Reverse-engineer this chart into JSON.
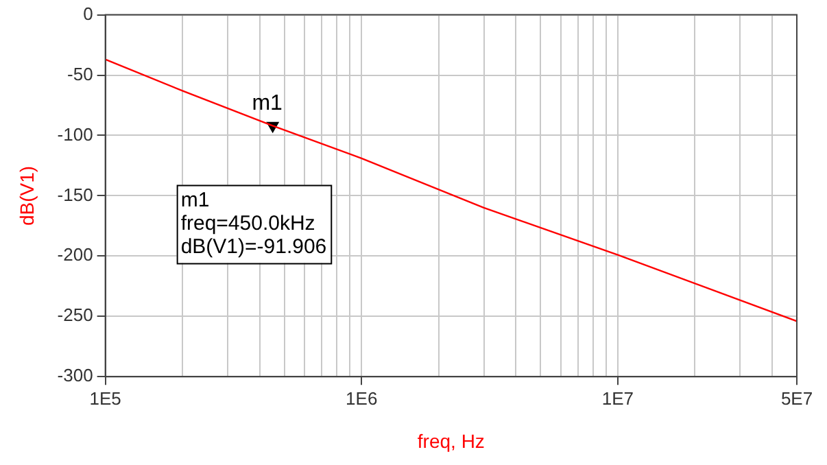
{
  "chart_data": {
    "type": "line",
    "xlabel": "freq, Hz",
    "ylabel": "dB(V1)",
    "x": [
      100000,
      200000,
      450000,
      1000000,
      3000000,
      10000000,
      50000000
    ],
    "series": [
      {
        "color": "#ff0000",
        "values": [
          -37,
          -63,
          -92,
          -119,
          -160,
          -199,
          -254
        ]
      },
      {
        "type": "scatter",
        "name": "m1",
        "marker": "triangle",
        "color": "#000000",
        "x": [
          450000
        ],
        "values": [
          -91.906
        ]
      }
    ],
    "log": "x",
    "xlim": [
      100000,
      50000000
    ],
    "ylim": [
      -300,
      0
    ],
    "xticks": [
      {
        "value": 100000,
        "label": "1E5"
      },
      {
        "value": 200000,
        "label": null
      },
      {
        "value": 300000,
        "label": null
      },
      {
        "value": 400000,
        "label": null
      },
      {
        "value": 500000,
        "label": null
      },
      {
        "value": 600000,
        "label": null
      },
      {
        "value": 700000,
        "label": null
      },
      {
        "value": 800000,
        "label": null
      },
      {
        "value": 900000,
        "label": null
      },
      {
        "value": 1000000,
        "label": "1E6"
      },
      {
        "value": 2000000,
        "label": null
      },
      {
        "value": 3000000,
        "label": null
      },
      {
        "value": 4000000,
        "label": null
      },
      {
        "value": 5000000,
        "label": null
      },
      {
        "value": 6000000,
        "label": null
      },
      {
        "value": 7000000,
        "label": null
      },
      {
        "value": 8000000,
        "label": null
      },
      {
        "value": 9000000,
        "label": null
      },
      {
        "value": 10000000,
        "label": "1E7"
      },
      {
        "value": 20000000,
        "label": null
      },
      {
        "value": 30000000,
        "label": null
      },
      {
        "value": 40000000,
        "label": null
      },
      {
        "value": 50000000,
        "label": "5E7"
      }
    ],
    "yticks": [
      -300,
      -250,
      -200,
      -150,
      -100,
      -50,
      0
    ],
    "grid": true,
    "legend": false,
    "marker": "none",
    "line_style": "solid",
    "annotations": [
      "m1\nfreq=450.0kHz\ndB(V1)=-91.906"
    ]
  }
}
